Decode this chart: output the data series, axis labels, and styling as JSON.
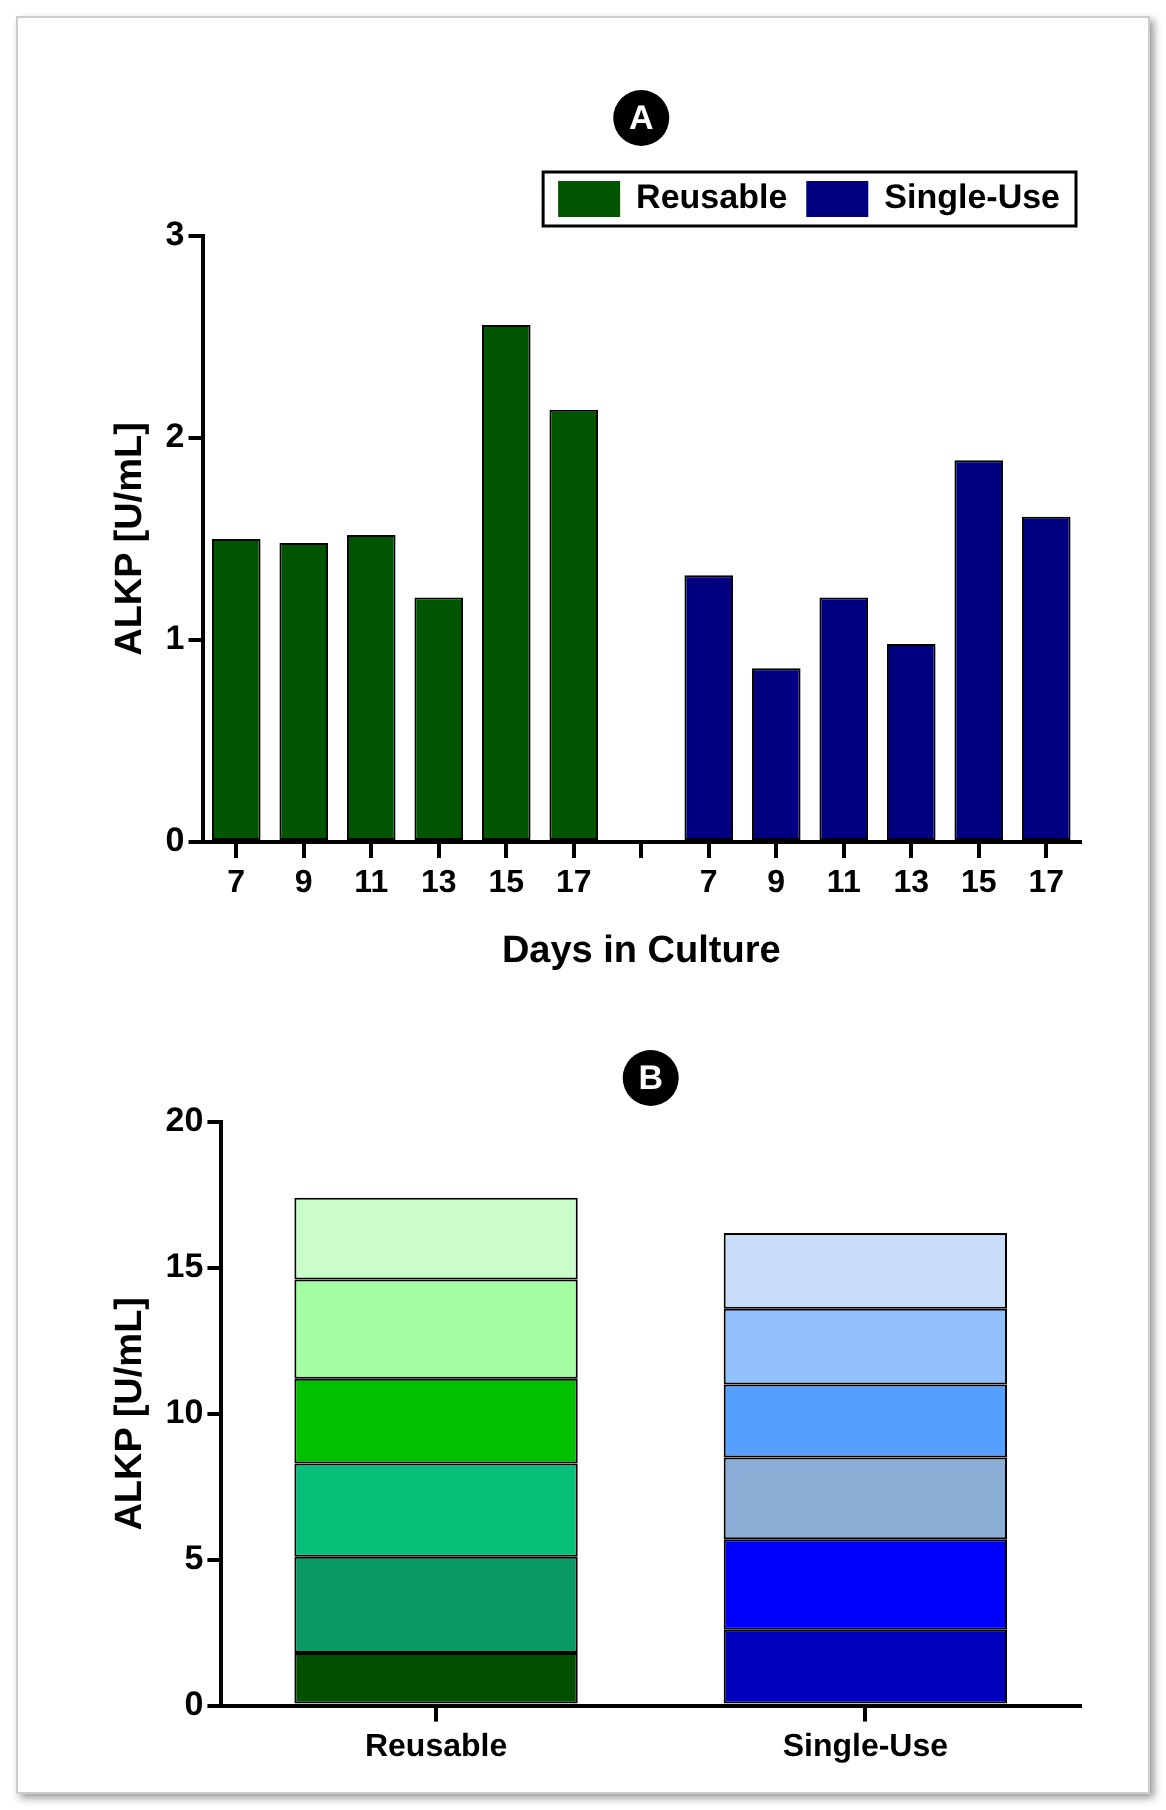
{
  "chart_data": [
    {
      "type": "bar",
      "title": "A",
      "xlabel": "Days in Culture",
      "ylabel": "ALKP [U/mL]",
      "categories": [
        "7",
        "9",
        "11",
        "13",
        "15",
        "17",
        null,
        "7",
        "9",
        "11",
        "13",
        "15",
        "17"
      ],
      "series": [
        {
          "name": "Reusable",
          "color": "#005500",
          "values": [
            1.5,
            1.48,
            1.52,
            1.21,
            2.56,
            2.14,
            null,
            null,
            null,
            null,
            null,
            null,
            null
          ]
        },
        {
          "name": "Single-Use",
          "color": "#000080",
          "values": [
            null,
            null,
            null,
            null,
            null,
            null,
            null,
            1.32,
            0.86,
            1.21,
            0.98,
            1.89,
            1.61
          ]
        }
      ],
      "ylim": [
        0,
        3
      ],
      "yticks": [
        0,
        1,
        2,
        3
      ],
      "grid": false,
      "legend": "top"
    },
    {
      "type": "bar",
      "title": "B",
      "ylabel": "ALKP [U/mL]",
      "stacked": true,
      "categories": [
        "Reusable",
        "Single-Use"
      ],
      "series": [
        {
          "colors": [
            "#005000",
            "#0000c0"
          ],
          "values": [
            1.8,
            2.6
          ]
        },
        {
          "colors": [
            "#0a9a64",
            "#0000ff"
          ],
          "values": [
            3.3,
            3.1
          ]
        },
        {
          "colors": [
            "#06c07a",
            "#8aaed6"
          ],
          "values": [
            3.2,
            2.8
          ]
        },
        {
          "colors": [
            "#00c000",
            "#55a0ff"
          ],
          "values": [
            2.9,
            2.5
          ]
        },
        {
          "colors": [
            "#a4fda0",
            "#92c0fa"
          ],
          "values": [
            3.4,
            2.6
          ]
        },
        {
          "colors": [
            "#cbfdcb",
            "#c9ddf8"
          ],
          "values": [
            2.8,
            2.6
          ]
        }
      ],
      "ylim": [
        0,
        20
      ],
      "yticks": [
        0,
        5,
        10,
        15,
        20
      ],
      "grid": false,
      "legend": false
    }
  ]
}
